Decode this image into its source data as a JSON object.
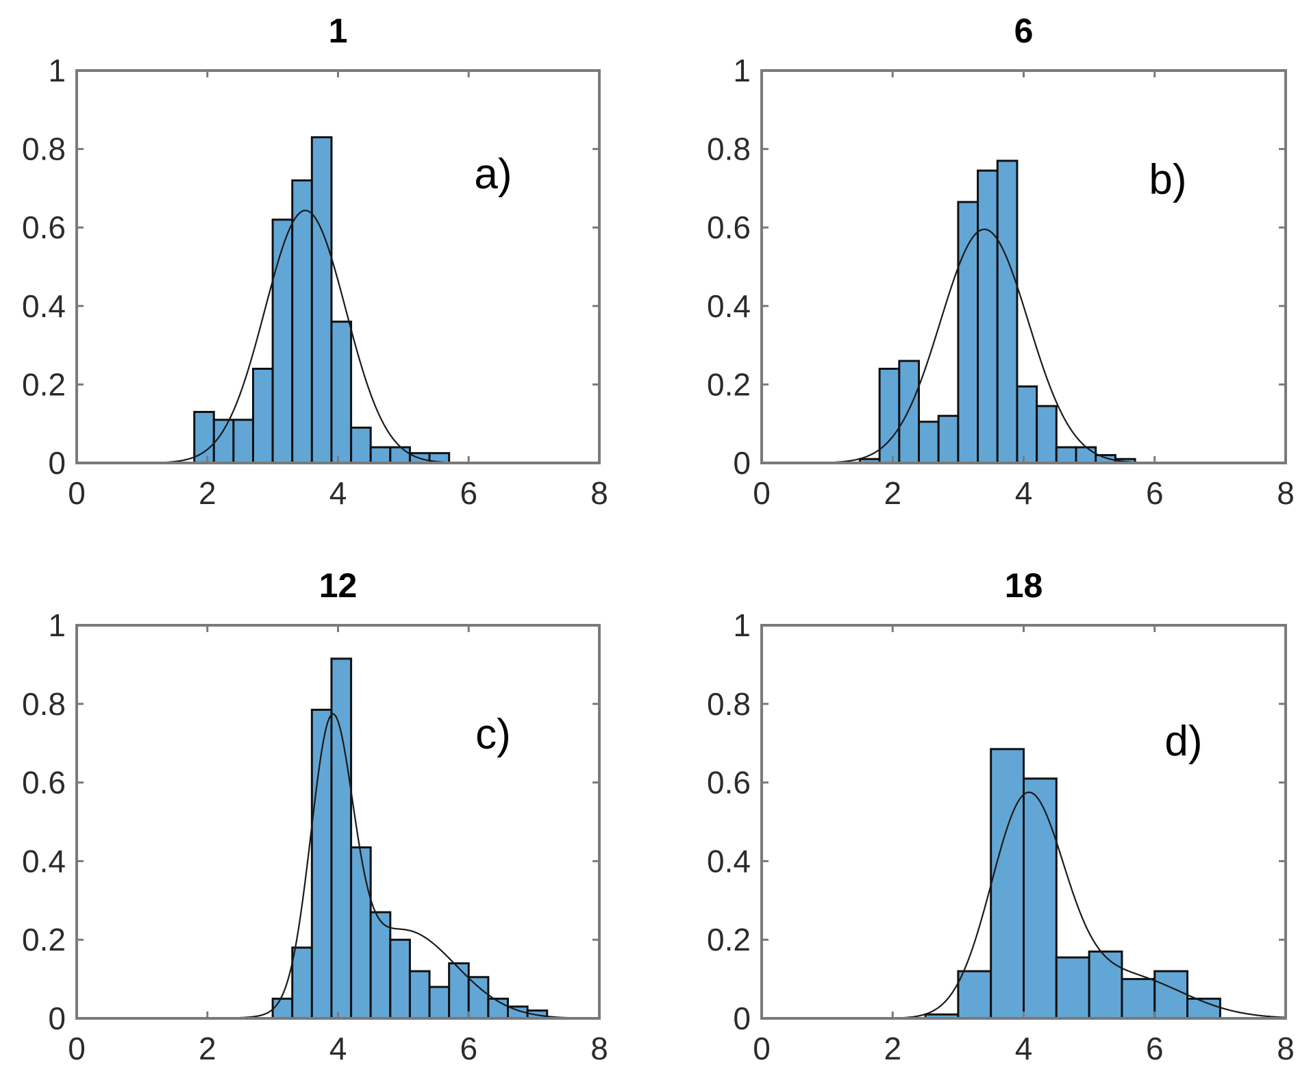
{
  "colors": {
    "bar_fill": "#62a6d6",
    "bar_stroke": "#111111",
    "axis": "#7a7a7a",
    "curve": "#1a1a1a"
  },
  "chart_data": [
    {
      "type": "bar",
      "title": "1",
      "panel_label": "a)",
      "xlim": [
        0,
        8
      ],
      "ylim": [
        0,
        1
      ],
      "x_ticks": [
        0,
        2,
        4,
        6,
        8
      ],
      "x_tick_labels": [
        "0",
        "2",
        "4",
        "6",
        "8"
      ],
      "y_ticks": [
        0,
        0.2,
        0.4,
        0.6,
        0.8,
        1
      ],
      "y_tick_labels": [
        "0",
        "0.2",
        "0.4",
        "0.6",
        "0.8",
        "1"
      ],
      "bin_width": 0.3,
      "bins": [
        {
          "x0": 1.8,
          "y": 0.13
        },
        {
          "x0": 2.1,
          "y": 0.11
        },
        {
          "x0": 2.4,
          "y": 0.11
        },
        {
          "x0": 2.7,
          "y": 0.24
        },
        {
          "x0": 3.0,
          "y": 0.62
        },
        {
          "x0": 3.3,
          "y": 0.72
        },
        {
          "x0": 3.6,
          "y": 0.83
        },
        {
          "x0": 3.9,
          "y": 0.36
        },
        {
          "x0": 4.2,
          "y": 0.09
        },
        {
          "x0": 4.5,
          "y": 0.04
        },
        {
          "x0": 4.8,
          "y": 0.04
        },
        {
          "x0": 5.1,
          "y": 0.025
        },
        {
          "x0": 5.4,
          "y": 0.025
        }
      ],
      "fit_curve": {
        "components": [
          {
            "weight": 1.0,
            "mean": 3.5,
            "sd": 0.62
          }
        ]
      }
    },
    {
      "type": "bar",
      "title": "6",
      "panel_label": "b)",
      "xlim": [
        0,
        8
      ],
      "ylim": [
        0,
        1
      ],
      "x_ticks": [
        0,
        2,
        4,
        6,
        8
      ],
      "x_tick_labels": [
        "0",
        "2",
        "4",
        "6",
        "8"
      ],
      "y_ticks": [
        0,
        0.2,
        0.4,
        0.6,
        0.8,
        1
      ],
      "y_tick_labels": [
        "0",
        "0.2",
        "0.4",
        "0.6",
        "0.8",
        "1"
      ],
      "bin_width": 0.3,
      "bins": [
        {
          "x0": 1.5,
          "y": 0.01
        },
        {
          "x0": 1.8,
          "y": 0.24
        },
        {
          "x0": 2.1,
          "y": 0.26
        },
        {
          "x0": 2.4,
          "y": 0.105
        },
        {
          "x0": 2.7,
          "y": 0.12
        },
        {
          "x0": 3.0,
          "y": 0.665
        },
        {
          "x0": 3.3,
          "y": 0.745
        },
        {
          "x0": 3.6,
          "y": 0.77
        },
        {
          "x0": 3.9,
          "y": 0.195
        },
        {
          "x0": 4.2,
          "y": 0.145
        },
        {
          "x0": 4.5,
          "y": 0.04
        },
        {
          "x0": 4.8,
          "y": 0.04
        },
        {
          "x0": 5.1,
          "y": 0.02
        },
        {
          "x0": 5.4,
          "y": 0.01
        }
      ],
      "fit_curve": {
        "components": [
          {
            "weight": 1.0,
            "mean": 3.4,
            "sd": 0.67
          }
        ]
      }
    },
    {
      "type": "bar",
      "title": "12",
      "panel_label": "c)",
      "xlim": [
        0,
        8
      ],
      "ylim": [
        0,
        1
      ],
      "x_ticks": [
        0,
        2,
        4,
        6,
        8
      ],
      "x_tick_labels": [
        "0",
        "2",
        "4",
        "6",
        "8"
      ],
      "y_ticks": [
        0,
        0.2,
        0.4,
        0.6,
        0.8,
        1
      ],
      "y_tick_labels": [
        "0",
        "0.2",
        "0.4",
        "0.6",
        "0.8",
        "1"
      ],
      "bin_width": 0.3,
      "bins": [
        {
          "x0": 3.0,
          "y": 0.05
        },
        {
          "x0": 3.3,
          "y": 0.18
        },
        {
          "x0": 3.6,
          "y": 0.785
        },
        {
          "x0": 3.9,
          "y": 0.915
        },
        {
          "x0": 4.2,
          "y": 0.435
        },
        {
          "x0": 4.5,
          "y": 0.27
        },
        {
          "x0": 4.8,
          "y": 0.2
        },
        {
          "x0": 5.1,
          "y": 0.12
        },
        {
          "x0": 5.4,
          "y": 0.08
        },
        {
          "x0": 5.7,
          "y": 0.14
        },
        {
          "x0": 6.0,
          "y": 0.105
        },
        {
          "x0": 6.3,
          "y": 0.05
        },
        {
          "x0": 6.6,
          "y": 0.03
        },
        {
          "x0": 6.9,
          "y": 0.02
        }
      ],
      "fit_curve": {
        "components": [
          {
            "weight": 0.55,
            "mean": 3.9,
            "sd": 0.32
          },
          {
            "weight": 0.45,
            "mean": 5.0,
            "sd": 0.8
          }
        ]
      }
    },
    {
      "type": "bar",
      "title": "18",
      "panel_label": "d)",
      "xlim": [
        0,
        8
      ],
      "ylim": [
        0,
        1
      ],
      "x_ticks": [
        0,
        2,
        4,
        6,
        8
      ],
      "x_tick_labels": [
        "0",
        "2",
        "4",
        "6",
        "8"
      ],
      "y_ticks": [
        0,
        0.2,
        0.4,
        0.6,
        0.8,
        1
      ],
      "y_tick_labels": [
        "0",
        "0.2",
        "0.4",
        "0.6",
        "0.8",
        "1"
      ],
      "bin_width": 0.5,
      "bins": [
        {
          "x0": 2.5,
          "y": 0.01
        },
        {
          "x0": 3.0,
          "y": 0.12
        },
        {
          "x0": 3.5,
          "y": 0.685
        },
        {
          "x0": 4.0,
          "y": 0.61
        },
        {
          "x0": 4.5,
          "y": 0.155
        },
        {
          "x0": 5.0,
          "y": 0.17
        },
        {
          "x0": 5.5,
          "y": 0.1
        },
        {
          "x0": 6.0,
          "y": 0.12
        },
        {
          "x0": 6.5,
          "y": 0.05
        }
      ],
      "fit_curve": {
        "components": [
          {
            "weight": 0.75,
            "mean": 4.05,
            "sd": 0.55
          },
          {
            "weight": 0.25,
            "mean": 5.5,
            "sd": 0.9
          }
        ]
      }
    }
  ]
}
